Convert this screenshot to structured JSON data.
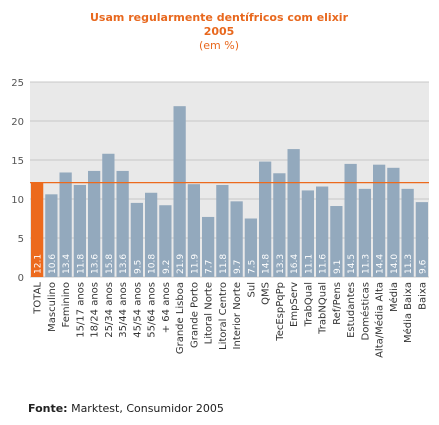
{
  "source": {
    "label": "Fonte:",
    "text": "Marktest, Consumidor 2005"
  },
  "colors": {
    "bar": "#93a9bd",
    "highlight_bar": "#ec6a1d",
    "reference_line": "#ec6a1d",
    "grid": "#c8c8c8",
    "plot_background": "#e9e9e9",
    "title": "#e8681e"
  },
  "chart_data": {
    "type": "bar",
    "title_lines": [
      "Usam regularmente dentífricos com elixir",
      "2005"
    ],
    "subtitle": "(em %)",
    "xlabel": "",
    "ylabel": "",
    "ylim": [
      0,
      25
    ],
    "yticks": [
      0,
      5,
      10,
      15,
      20,
      25
    ],
    "grid": true,
    "legend": "none",
    "highlight_index": 0,
    "reference_line": 12.1,
    "categories": [
      "TOTAL",
      "Masculino",
      "Feminino",
      "15/17 anos",
      "18/24 anos",
      "25/34 anos",
      "35/44 anos",
      "45/54 anos",
      "55/64 anos",
      "+ 64 anos",
      "Grande Lisboa",
      "Grande Porto",
      "Litoral Norte",
      "Litoral Centro",
      "Interior Norte",
      "Sul",
      "QMS",
      "TecEspPqPp",
      "EmpServ",
      "TrabQual",
      "TrabNQual",
      "Ref/Pens",
      "Estudantes",
      "Domésticas",
      "Alta/Média Alta",
      "Média",
      "Média Baixa",
      "Baixa"
    ],
    "values": [
      12.1,
      10.6,
      13.4,
      11.8,
      13.6,
      15.8,
      13.6,
      9.5,
      10.8,
      9.2,
      21.9,
      11.9,
      7.7,
      11.8,
      9.7,
      7.5,
      14.8,
      13.3,
      16.4,
      11.1,
      11.6,
      9.1,
      14.5,
      11.3,
      14.4,
      14.0,
      11.3,
      9.6
    ],
    "value_labels": [
      "12.1",
      "10.6",
      "13.4",
      "11.8",
      "13.6",
      "15.8",
      "13.6",
      "9.5",
      "10.8",
      "9.2",
      "21.9",
      "11.9",
      "7.7",
      "11.8",
      "9.7",
      "7.5",
      "14.8",
      "13.3",
      "16.4",
      "11.1",
      "11.6",
      "9.1",
      "14.5",
      "11.3",
      "14.4",
      "14.0",
      "11.3",
      "9.6"
    ]
  }
}
